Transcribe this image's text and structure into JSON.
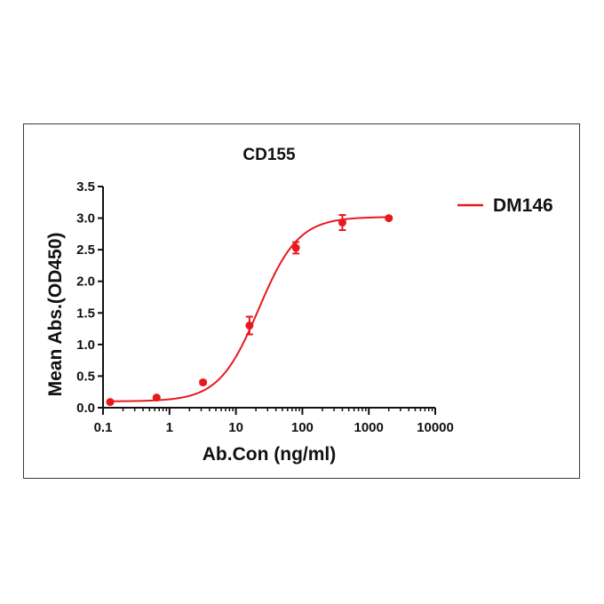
{
  "chart_data": {
    "type": "scatter",
    "title": "CD155",
    "xlabel": "Ab.Con (ng/ml)",
    "ylabel": "Mean Abs.(OD450)",
    "x_scale": "log",
    "xlim": [
      0.1,
      10000
    ],
    "ylim": [
      0,
      3.5
    ],
    "x_ticks": [
      0.1,
      1,
      10,
      100,
      1000,
      10000
    ],
    "x_tick_labels": [
      "0.1",
      "1",
      "10",
      "100",
      "1000",
      "10000"
    ],
    "y_ticks": [
      0,
      0.5,
      1,
      1.5,
      2,
      2.5,
      3,
      3.5
    ],
    "y_tick_labels": [
      "0.0",
      "0.5",
      "1.0",
      "1.5",
      "2.0",
      "2.5",
      "3.0",
      "3.5"
    ],
    "grid": false,
    "legend_position": "right",
    "series": [
      {
        "name": "DM146",
        "color": "#e8191e",
        "x": [
          0.128,
          0.64,
          3.2,
          16,
          80,
          400,
          2000
        ],
        "y": [
          0.09,
          0.16,
          0.4,
          1.3,
          2.53,
          2.93,
          3.0
        ],
        "error": [
          0.02,
          0.02,
          0.03,
          0.14,
          0.09,
          0.12,
          0.02
        ],
        "fit": {
          "model": "4PL",
          "bottom": 0.1,
          "top": 3.02,
          "ec50": 22,
          "hill": 1.45
        }
      }
    ]
  }
}
